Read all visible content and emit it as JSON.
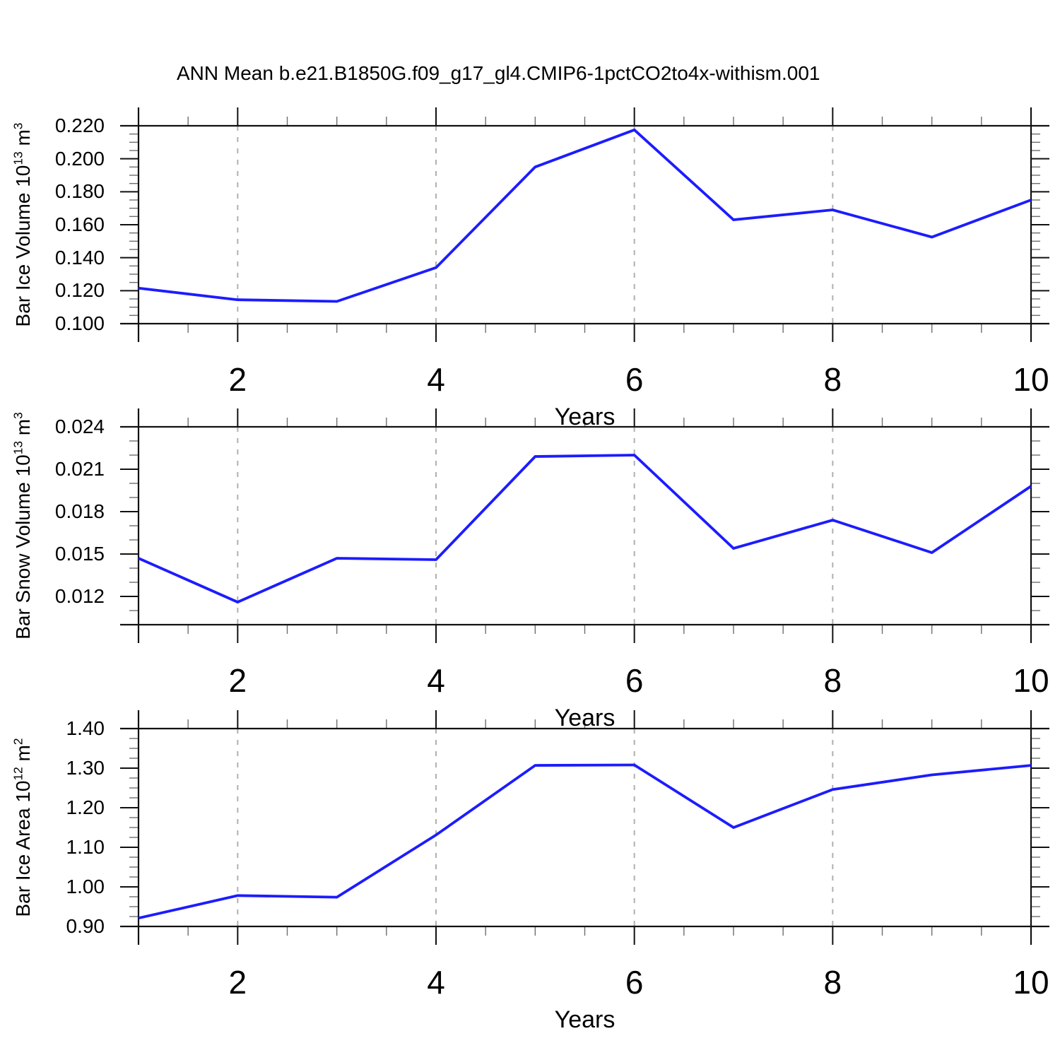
{
  "title": "ANN Mean b.e21.B1850G.f09_g17_gl4.CMIP6-1pctCO2to4x-withism.001",
  "colors": {
    "line": "#1c1cff",
    "frame": "#111111",
    "major_tick": "#111111",
    "minor_tick": "#6e6e6e",
    "grid": "#b0b0b0",
    "text": "#000000",
    "background": "#ffffff"
  },
  "x_axis": {
    "label": "Years",
    "min": 1,
    "max": 10,
    "major_ticks": [
      {
        "v": 2,
        "label": "2"
      },
      {
        "v": 4,
        "label": "4"
      },
      {
        "v": 6,
        "label": "6"
      },
      {
        "v": 8,
        "label": "8"
      },
      {
        "v": 10,
        "label": "10"
      }
    ],
    "minor_step": 0.5,
    "gridlines": [
      2,
      4,
      6,
      8
    ]
  },
  "chart_data": [
    {
      "type": "line",
      "id": "bar-ice-volume",
      "ylabel_plain": "Bar Ice Volume 10^13 m^3",
      "ylabel_parts": [
        {
          "text": "Bar Ice Volume 10",
          "sup": false
        },
        {
          "text": "13",
          "sup": true
        },
        {
          "text": " m",
          "sup": false
        },
        {
          "text": "3",
          "sup": true
        }
      ],
      "xlabel": "Years",
      "x": [
        1,
        2,
        3,
        4,
        5,
        6,
        7,
        8,
        9,
        10
      ],
      "values": [
        0.1215,
        0.1145,
        0.1135,
        0.134,
        0.195,
        0.2175,
        0.163,
        0.169,
        0.1525,
        0.175
      ],
      "ylim": [
        0.1,
        0.22
      ],
      "y_major": [
        {
          "v": 0.1,
          "label": "0.100"
        },
        {
          "v": 0.12,
          "label": "0.120"
        },
        {
          "v": 0.14,
          "label": "0.140"
        },
        {
          "v": 0.16,
          "label": "0.160"
        },
        {
          "v": 0.18,
          "label": "0.180"
        },
        {
          "v": 0.2,
          "label": "0.200"
        },
        {
          "v": 0.22,
          "label": "0.220"
        }
      ],
      "y_minor_step": 0.005
    },
    {
      "type": "line",
      "id": "bar-snow-volume",
      "ylabel_plain": "Bar Snow Volume 10^13 m^3",
      "ylabel_parts": [
        {
          "text": "Bar Snow Volume 10",
          "sup": false
        },
        {
          "text": "13",
          "sup": true
        },
        {
          "text": " m",
          "sup": false
        },
        {
          "text": "3",
          "sup": true
        }
      ],
      "xlabel": "Years",
      "x": [
        1,
        2,
        3,
        4,
        5,
        6,
        7,
        8,
        9,
        10
      ],
      "values": [
        0.0147,
        0.0116,
        0.0147,
        0.0146,
        0.0219,
        0.022,
        0.0154,
        0.0174,
        0.0151,
        0.0198
      ],
      "ylim": [
        0.01,
        0.024
      ],
      "y_major": [
        {
          "v": 0.012,
          "label": "0.012"
        },
        {
          "v": 0.015,
          "label": "0.015"
        },
        {
          "v": 0.018,
          "label": "0.018"
        },
        {
          "v": 0.021,
          "label": "0.021"
        },
        {
          "v": 0.024,
          "label": "0.024"
        }
      ],
      "y_minor_step": 0.001
    },
    {
      "type": "line",
      "id": "bar-ice-area",
      "ylabel_plain": "Bar Ice Area 10^12 m^2",
      "ylabel_parts": [
        {
          "text": "Bar Ice Area 10",
          "sup": false
        },
        {
          "text": "12",
          "sup": true
        },
        {
          "text": " m",
          "sup": false
        },
        {
          "text": "2",
          "sup": true
        }
      ],
      "xlabel": "Years",
      "x": [
        1,
        2,
        3,
        4,
        5,
        6,
        7,
        8,
        9,
        10
      ],
      "values": [
        0.921,
        0.978,
        0.974,
        1.131,
        1.307,
        1.308,
        1.15,
        1.246,
        1.283,
        1.307
      ],
      "ylim": [
        0.9,
        1.4
      ],
      "y_major": [
        {
          "v": 0.9,
          "label": "0.90"
        },
        {
          "v": 1.0,
          "label": "1.00"
        },
        {
          "v": 1.1,
          "label": "1.10"
        },
        {
          "v": 1.2,
          "label": "1.20"
        },
        {
          "v": 1.3,
          "label": "1.30"
        },
        {
          "v": 1.4,
          "label": "1.40"
        }
      ],
      "y_minor_step": 0.025
    }
  ]
}
